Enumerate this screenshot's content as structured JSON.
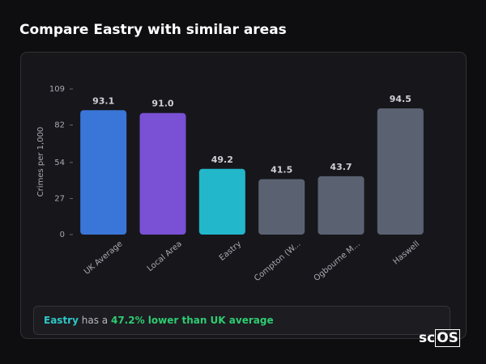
{
  "chart_data": {
    "type": "bar",
    "title": "Compare Eastry with similar areas",
    "y_label": "Crimes per 1,000",
    "categories": [
      "UK Average",
      "Local Area",
      "Eastry",
      "Compton (W...",
      "Ogbourne M...",
      "Haswell"
    ],
    "values": [
      93.1,
      91.0,
      49.2,
      41.5,
      43.7,
      94.5
    ],
    "value_labels": [
      "93.1",
      "91.0",
      "49.2",
      "41.5",
      "43.7",
      "94.5"
    ],
    "colors": [
      "#3a76d8",
      "#7a50d4",
      "#22b7cb",
      "#5a6272",
      "#5a6272",
      "#5a6272"
    ],
    "ylim": [
      0,
      109
    ],
    "yticks": [
      0,
      27,
      54,
      82,
      109
    ]
  },
  "footer": {
    "area": "Eastry",
    "text": "has a",
    "highlight": "47.2% lower than UK average"
  },
  "logo": {
    "prefix": "sc",
    "boxed": "OS"
  }
}
